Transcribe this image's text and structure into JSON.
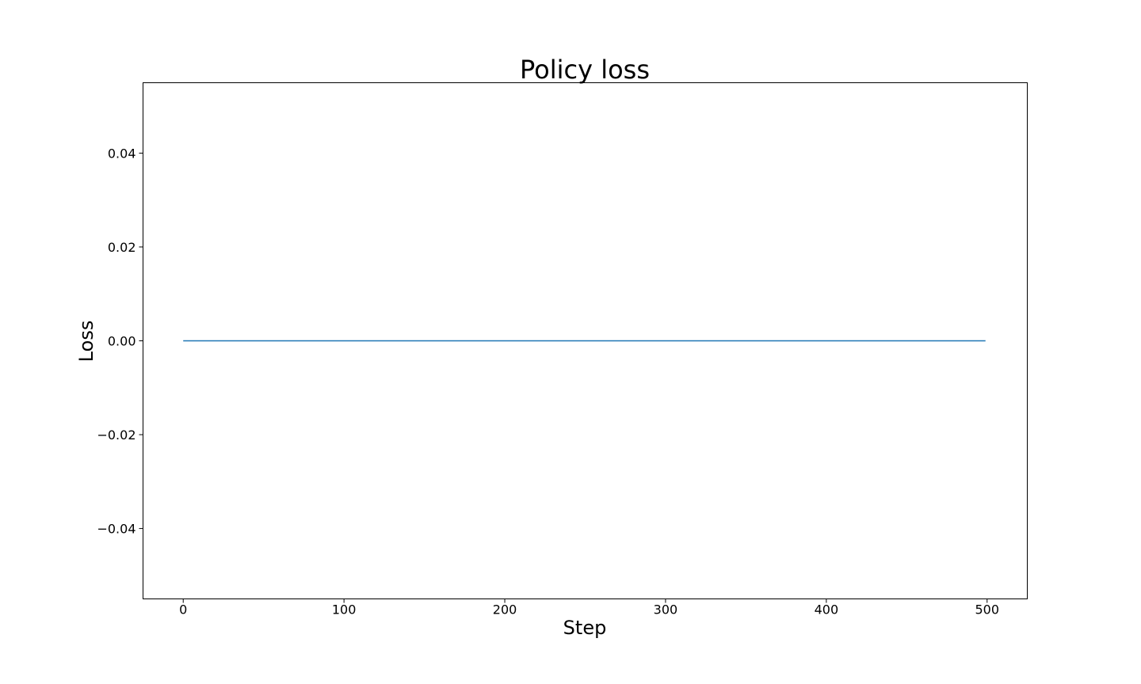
{
  "chart_data": {
    "type": "line",
    "title": "Policy loss",
    "xlabel": "Step",
    "ylabel": "Loss",
    "xlim": [
      -25,
      525
    ],
    "ylim": [
      -0.055,
      0.055
    ],
    "x_ticks": [
      0,
      100,
      200,
      300,
      400,
      500
    ],
    "x_tick_labels": [
      "0",
      "100",
      "200",
      "300",
      "400",
      "500"
    ],
    "y_ticks": [
      0.04,
      0.02,
      0.0,
      -0.02,
      -0.04
    ],
    "y_tick_labels": [
      "0.04",
      "0.02",
      "0.00",
      "−0.02",
      "−0.04"
    ],
    "grid": false,
    "legend": "none",
    "series": [
      {
        "color": "#1f77b4",
        "x": [
          0,
          499
        ],
        "y": [
          0.0,
          0.0
        ]
      }
    ]
  }
}
